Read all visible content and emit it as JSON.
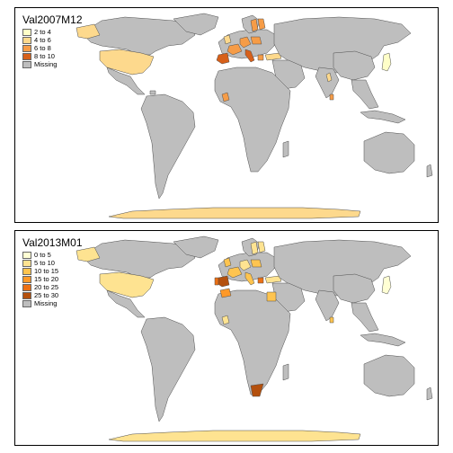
{
  "maps": [
    {
      "title": "Val2007M12",
      "legend": [
        {
          "label": "2 to 4",
          "color": "#ffffc8"
        },
        {
          "label": "4 to 6",
          "color": "#fdd98d"
        },
        {
          "label": "6 to 8",
          "color": "#f69c47"
        },
        {
          "label": "8 to 10",
          "color": "#d7601a"
        },
        {
          "label": "Missing",
          "color": "#bebebe"
        }
      ]
    },
    {
      "title": "Val2013M01",
      "legend": [
        {
          "label": "0 to 5",
          "color": "#ffffd4"
        },
        {
          "label": "5 to 10",
          "color": "#fee391"
        },
        {
          "label": "10 to 15",
          "color": "#fec44f"
        },
        {
          "label": "15 to 20",
          "color": "#fe9929"
        },
        {
          "label": "20 to 25",
          "color": "#ec7014"
        },
        {
          "label": "25 to 30",
          "color": "#b4500d"
        },
        {
          "label": "Missing",
          "color": "#bebebe"
        }
      ]
    }
  ],
  "colors": {
    "missing": "#bebebe",
    "border": "#4d4d4d",
    "ocean": "#ffffff"
  }
}
